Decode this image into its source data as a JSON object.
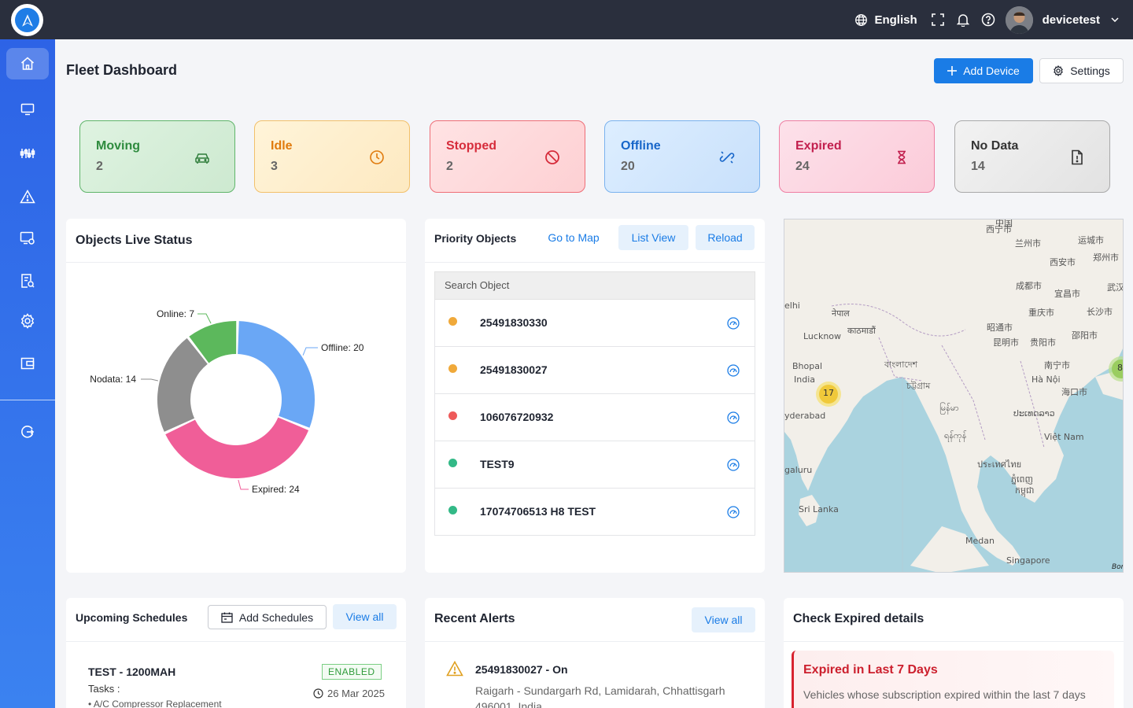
{
  "header": {
    "language": "English",
    "username": "devicetest",
    "title": "Fleet Dashboard",
    "add_device_label": "Add Device",
    "settings_label": "Settings"
  },
  "sidebar": {
    "items": [
      {
        "icon": "home-icon"
      },
      {
        "icon": "monitor-icon"
      },
      {
        "icon": "sliders-icon"
      },
      {
        "icon": "alert-icon"
      },
      {
        "icon": "screen-settings-icon"
      },
      {
        "icon": "report-icon"
      },
      {
        "icon": "gear-icon"
      },
      {
        "icon": "wallet-icon"
      },
      {
        "icon": "logout-icon"
      }
    ]
  },
  "stats": [
    {
      "label": "Moving",
      "value": "2",
      "color": "#2e8b3e",
      "icon": "car-icon"
    },
    {
      "label": "Idle",
      "value": "3",
      "color": "#e07a0c",
      "icon": "clock-icon"
    },
    {
      "label": "Stopped",
      "value": "2",
      "color": "#d62c3b",
      "icon": "ban-icon"
    },
    {
      "label": "Offline",
      "value": "20",
      "color": "#1766c9",
      "icon": "unlink-icon"
    },
    {
      "label": "Expired",
      "value": "24",
      "color": "#c21f4e",
      "icon": "hourglass-icon"
    },
    {
      "label": "No Data",
      "value": "14",
      "color": "#333333",
      "icon": "file-icon"
    }
  ],
  "live_status": {
    "title": "Objects Live Status"
  },
  "chart_data": {
    "type": "pie",
    "categories": [
      "Offline",
      "Expired",
      "Nodata",
      "Online"
    ],
    "values": [
      20,
      24,
      14,
      7
    ],
    "labels": [
      "Offline: 20",
      "Expired: 24",
      "Nodata: 14",
      "Online: 7"
    ],
    "colors": [
      "#6aa7f5",
      "#f05e98",
      "#8e8e8e",
      "#5cb85c"
    ]
  },
  "priority": {
    "title": "Priority Objects",
    "go_to_map": "Go to Map",
    "list_view": "List View",
    "reload": "Reload",
    "search_placeholder": "Search Object",
    "objects": [
      {
        "id": "25491830330",
        "color": "#f0a93a"
      },
      {
        "id": "25491830027",
        "color": "#f0a93a"
      },
      {
        "id": "106076720932",
        "color": "#ee5a5a"
      },
      {
        "id": "TEST9",
        "color": "#33b987"
      },
      {
        "id": "17074706513 H8 TEST",
        "color": "#33b987"
      }
    ]
  },
  "map": {
    "labels": [
      "中国",
      "兰州市",
      "西宁市",
      "运城市",
      "郑州市",
      "西安市",
      "成都市",
      "宜昌市",
      "武汉",
      "重庆市",
      "长沙市",
      "昭通市",
      "昆明市",
      "贵阳市",
      "邵阳市",
      "南宁市",
      "Hà Nội",
      "海口市",
      "नेपाल",
      "काठमाडौं",
      "Lucknow",
      "Bhopal",
      "India",
      "বাংলাদেশ",
      "চট্টগ্রাম",
      "မြန်မာ",
      "ရန်ကုန်",
      "ປະເທດລາວ",
      "Việt Nam",
      "ประเทศไทย",
      "ភ្នំពេញ",
      "កម្ពុជា",
      "Sri Lanka",
      "Medan",
      "Singapore",
      "elhi",
      "yderabad",
      "galuru",
      "Bor"
    ],
    "clusters": [
      "17",
      "8"
    ]
  },
  "schedules": {
    "title": "Upcoming Schedules",
    "add_label": "Add Schedules",
    "view_all": "View all",
    "item": {
      "name": "TEST - 1200MAH",
      "status": "ENABLED",
      "tasks_label": "Tasks :",
      "date": "26 Mar 2025",
      "task": "• A/C Compressor Replacement"
    }
  },
  "alerts": {
    "title": "Recent Alerts",
    "view_all": "View all",
    "item": {
      "title": "25491830027 - On",
      "address": "Raigarh - Sundargarh Rd, Lamidarah, Chhattisgarh 496001, India"
    }
  },
  "expired": {
    "title": "Check Expired details",
    "card_title": "Expired in Last 7 Days",
    "card_text": "Vehicles whose subscription expired within the last 7 days"
  }
}
